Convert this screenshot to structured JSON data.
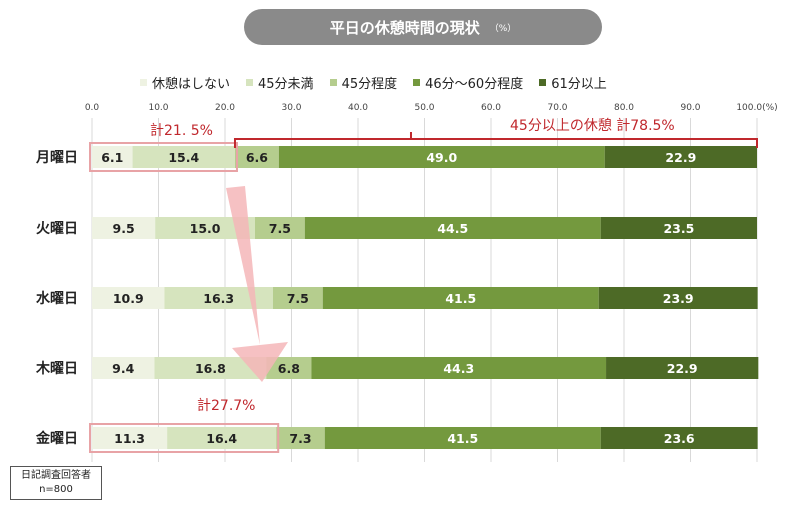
{
  "title": "平日の休憩時間の現状",
  "title_unit": "（%）",
  "legend": [
    {
      "label": "休憩はしない",
      "color": "#eef2e2"
    },
    {
      "label": "45分未満",
      "color": "#d6e4be"
    },
    {
      "label": "45分程度",
      "color": "#b5cd8e"
    },
    {
      "label": "46分～60分程度",
      "color": "#74993e"
    },
    {
      "label": "61分以上",
      "color": "#4d6a26"
    }
  ],
  "chart_data": {
    "type": "bar",
    "orientation": "horizontal",
    "stacked": true,
    "categories": [
      "月曜日",
      "火曜日",
      "水曜日",
      "木曜日",
      "金曜日"
    ],
    "series": [
      {
        "name": "休憩はしない",
        "values": [
          6.1,
          9.5,
          10.9,
          9.4,
          11.3
        ]
      },
      {
        "name": "45分未満",
        "values": [
          15.4,
          15.0,
          16.3,
          16.8,
          16.4
        ]
      },
      {
        "name": "45分程度",
        "values": [
          6.6,
          7.5,
          7.5,
          6.8,
          7.3
        ]
      },
      {
        "name": "46分～60分程度",
        "values": [
          49.0,
          44.5,
          41.5,
          44.3,
          41.5
        ]
      },
      {
        "name": "61分以上",
        "values": [
          22.9,
          23.5,
          23.9,
          22.9,
          23.6
        ]
      }
    ],
    "xlim": [
      0,
      100
    ],
    "x_ticks": [
      "0.0",
      "10.0",
      "20.0",
      "30.0",
      "40.0",
      "50.0",
      "60.0",
      "70.0",
      "80.0",
      "90.0",
      "100.0(%)"
    ],
    "grid": true,
    "legend_position": "top"
  },
  "annotations": {
    "monday_total": "計21. 5%",
    "friday_total": "計27.7%",
    "over45_total": "45分以上の休憩 計78.5%"
  },
  "note": {
    "line1": "日記調査回答者",
    "line2": "n=800"
  },
  "colors": {
    "annotation": "#c0282d",
    "highlight_border": "#e8a3a6",
    "arrow": "#f4b6b8",
    "grid": "#d9d9d9"
  }
}
